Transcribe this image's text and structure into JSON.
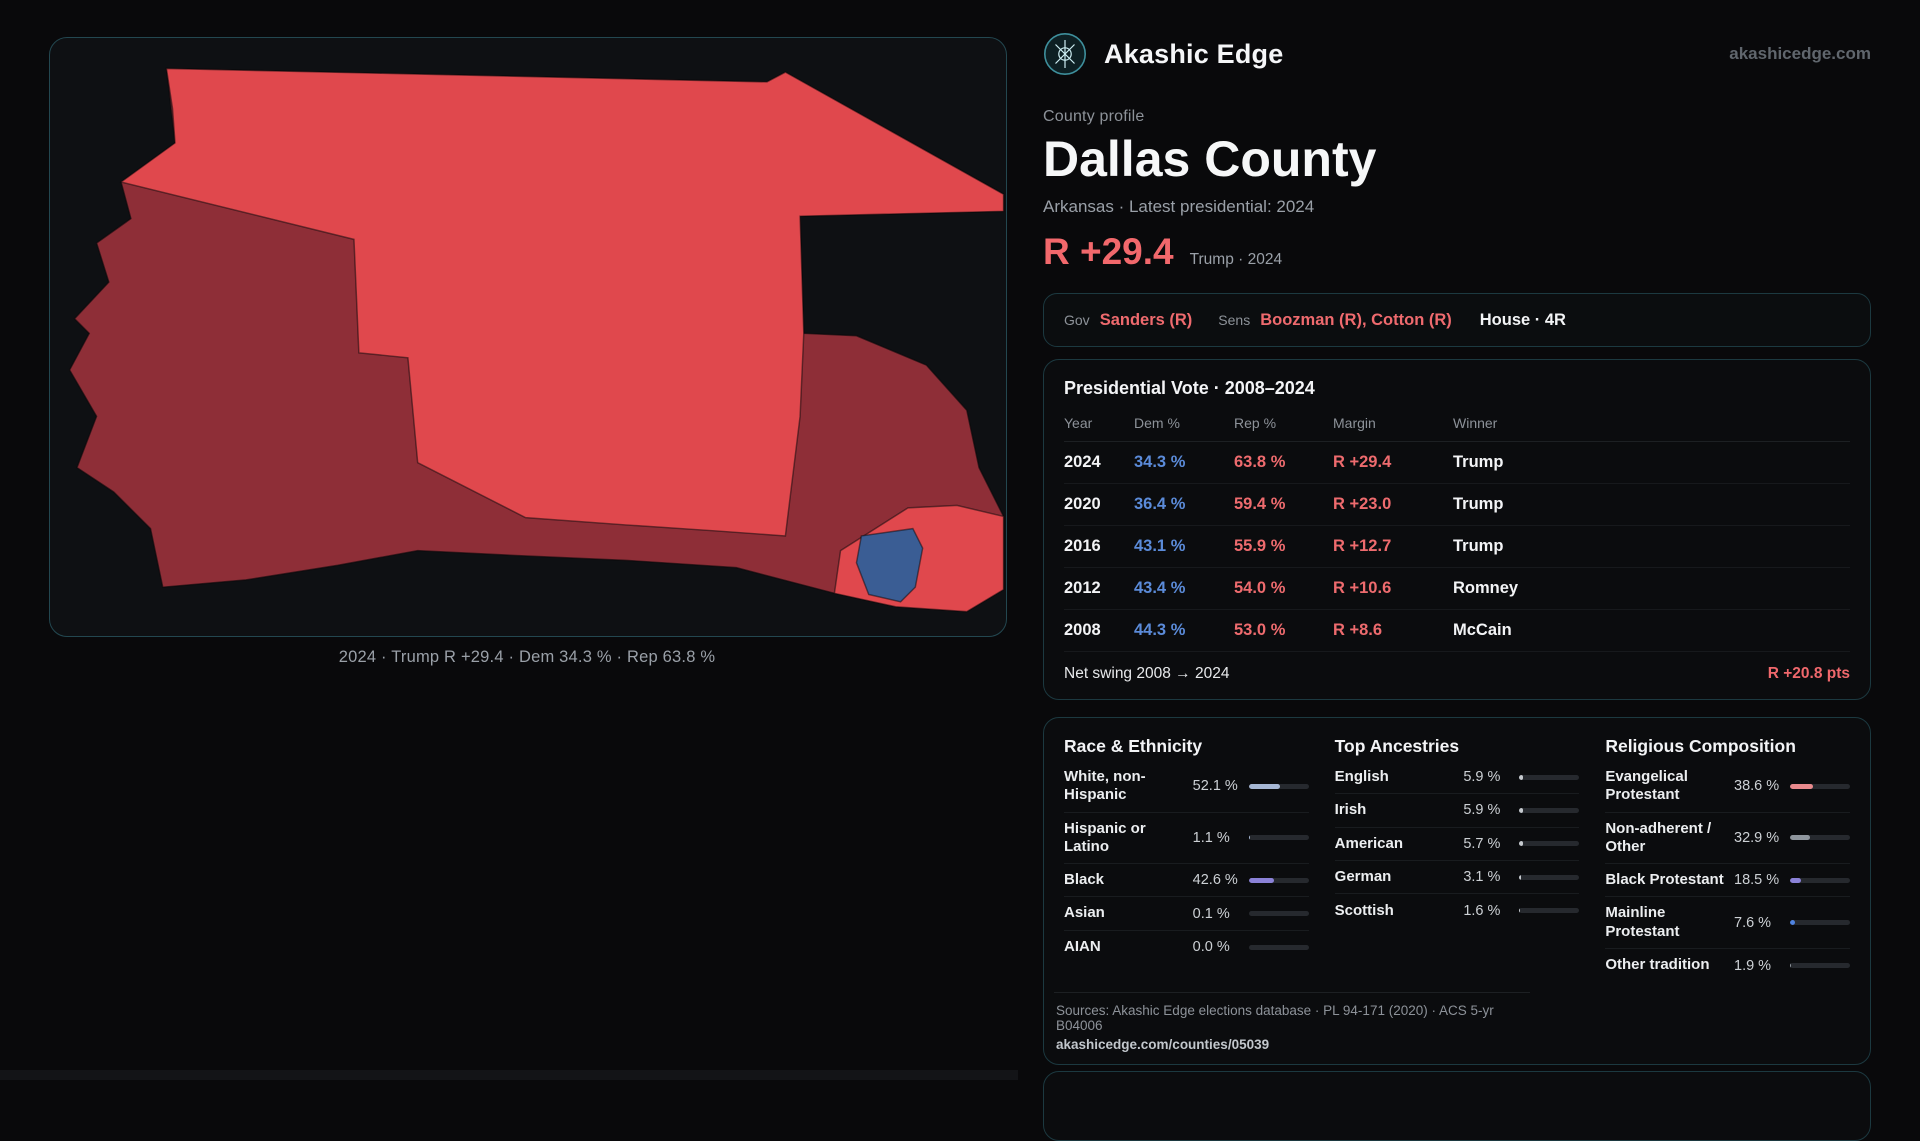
{
  "theme": {
    "accent_red": "#f2686c",
    "accent_blue": "#5b8bd9",
    "card_border": "#1c3940",
    "background": "#09090b"
  },
  "header": {
    "brand": "Akashic Edge",
    "site_link": "akashicedge.com"
  },
  "map_panel": {
    "caption": "2024 · Trump R +29.4 · Dem 34.3 % · Rep 63.8 %",
    "colors": {
      "gop_bright": "#e0484d",
      "gop_dark": "#8e2e37",
      "dem_blue": "#3a5d94",
      "stroke": "rgba(8,8,10,0.55)"
    }
  },
  "profile": {
    "kicker": "County profile",
    "county": "Dallas County",
    "subtitle": "Arkansas · Latest presidential: 2024",
    "headline_margin": "R +29.4",
    "headline_note": "Trump · 2024"
  },
  "officials": {
    "gov_label": "Gov",
    "gov": "Sanders (R)",
    "sens_label": "Sens",
    "sens": "Boozman (R), Cotton (R)",
    "house": "House · 4R"
  },
  "vote_card": {
    "title": "Presidential Vote · 2008–2024",
    "columns": [
      "Year",
      "Dem %",
      "Rep %",
      "Margin",
      "Winner"
    ],
    "rows": [
      {
        "year": "2024",
        "dem": "34.3 %",
        "rep": "63.8 %",
        "margin": "R +29.4",
        "winner": "Trump"
      },
      {
        "year": "2020",
        "dem": "36.4 %",
        "rep": "59.4 %",
        "margin": "R +23.0",
        "winner": "Trump"
      },
      {
        "year": "2016",
        "dem": "43.1 %",
        "rep": "55.9 %",
        "margin": "R +12.7",
        "winner": "Trump"
      },
      {
        "year": "2012",
        "dem": "43.4 %",
        "rep": "54.0 %",
        "margin": "R +10.6",
        "winner": "Romney"
      },
      {
        "year": "2008",
        "dem": "44.3 %",
        "rep": "53.0 %",
        "margin": "R +8.6",
        "winner": "McCain"
      }
    ],
    "swing_label": "Net swing 2008 → 2024",
    "swing_value": "R +20.8 pts"
  },
  "demographics": {
    "race": {
      "title": "Race & Ethnicity",
      "items": [
        {
          "label": "White, non-Hispanic",
          "value": "52.1 %",
          "pct": 52.1,
          "color": "#a6b7d4"
        },
        {
          "label": "Hispanic or Latino",
          "value": "1.1 %",
          "pct": 1.1,
          "color": "#a6b7d4"
        },
        {
          "label": "Black",
          "value": "42.6 %",
          "pct": 42.6,
          "color": "#8b82d8"
        },
        {
          "label": "Asian",
          "value": "0.1 %",
          "pct": 0.1,
          "color": "#a6b7d4"
        },
        {
          "label": "AIAN",
          "value": "0.0 %",
          "pct": 0,
          "color": "#a6b7d4"
        }
      ]
    },
    "ancestries": {
      "title": "Top Ancestries",
      "items": [
        {
          "label": "English",
          "value": "5.9 %",
          "pct": 5.9,
          "color": "#c6cacf"
        },
        {
          "label": "Irish",
          "value": "5.9 %",
          "pct": 5.9,
          "color": "#c6cacf"
        },
        {
          "label": "American",
          "value": "5.7 %",
          "pct": 5.7,
          "color": "#c6cacf"
        },
        {
          "label": "German",
          "value": "3.1 %",
          "pct": 3.1,
          "color": "#c6cacf"
        },
        {
          "label": "Scottish",
          "value": "1.6 %",
          "pct": 1.6,
          "color": "#c6cacf"
        }
      ]
    },
    "religion": {
      "title": "Religious Composition",
      "items": [
        {
          "label": "Evangelical Protestant",
          "value": "38.6 %",
          "pct": 38.6,
          "color": "#e98a8d"
        },
        {
          "label": "Non-adherent / Other",
          "value": "32.9 %",
          "pct": 32.9,
          "color": "#8f969d"
        },
        {
          "label": "Black Protestant",
          "value": "18.5 %",
          "pct": 18.5,
          "color": "#8b82d8"
        },
        {
          "label": "Mainline Protestant",
          "value": "7.6 %",
          "pct": 7.6,
          "color": "#4f83e0"
        },
        {
          "label": "Other tradition",
          "value": "1.9 %",
          "pct": 1.9,
          "color": "#8f969d"
        }
      ]
    }
  },
  "footer": {
    "sources": "Sources: Akashic Edge elections database · PL 94-171 (2020) · ACS 5-yr B04006",
    "permalink": "akashicedge.com/counties/05039"
  }
}
